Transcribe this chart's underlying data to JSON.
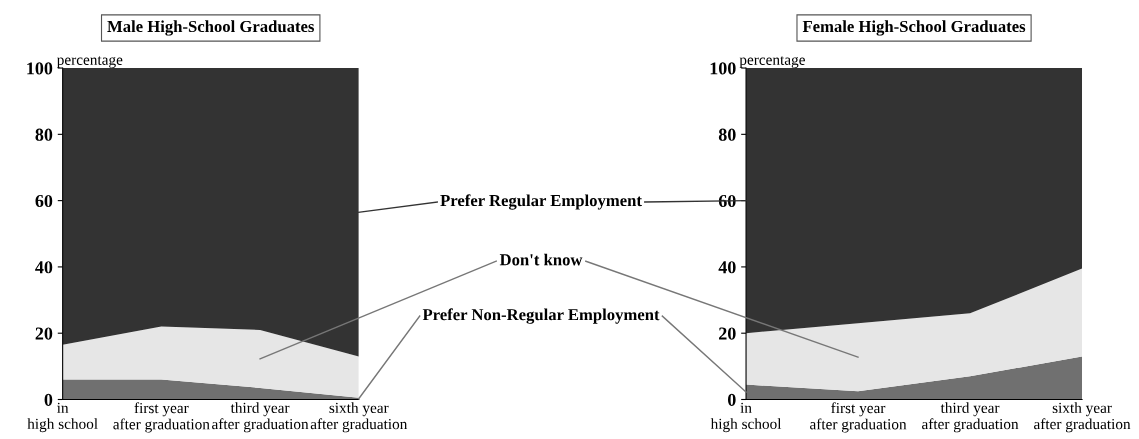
{
  "chart_data": [
    {
      "type": "area",
      "stacked": true,
      "title": "Male High-School Graduates",
      "ylabel": "percentage",
      "categories": [
        "in\nhigh school",
        "first year\nafter graduation",
        "third year\nafter graduation",
        "sixth year\nafter graduation"
      ],
      "ylim": [
        0,
        100
      ],
      "yticks": [
        0,
        20,
        40,
        60,
        80,
        100
      ],
      "series": [
        {
          "name": "Prefer Non-Regular Employment",
          "color": "#707070",
          "values": [
            6,
            6,
            3.5,
            0.5
          ]
        },
        {
          "name": "Don't know",
          "color": "#e6e6e6",
          "values": [
            10.5,
            16,
            17.5,
            12.5
          ]
        },
        {
          "name": "Prefer Regular Employment",
          "color": "#333333",
          "values": [
            83.5,
            78,
            79,
            87
          ]
        }
      ]
    },
    {
      "type": "area",
      "stacked": true,
      "title": "Female High-School Graduates",
      "ylabel": "percentage",
      "categories": [
        "in\nhigh school",
        "first year\nafter graduation",
        "third year\nafter graduation",
        "sixth year\nafter graduation"
      ],
      "ylim": [
        0,
        100
      ],
      "yticks": [
        0,
        20,
        40,
        60,
        80,
        100
      ],
      "series": [
        {
          "color": "#707070",
          "values": [
            4.5,
            2.5,
            7,
            13
          ]
        },
        {
          "color": "#e6e6e6",
          "values": [
            15.5,
            20.5,
            19,
            26.5
          ]
        },
        {
          "color": "#333333",
          "values": [
            80,
            77,
            74,
            60.5
          ]
        }
      ]
    }
  ]
}
